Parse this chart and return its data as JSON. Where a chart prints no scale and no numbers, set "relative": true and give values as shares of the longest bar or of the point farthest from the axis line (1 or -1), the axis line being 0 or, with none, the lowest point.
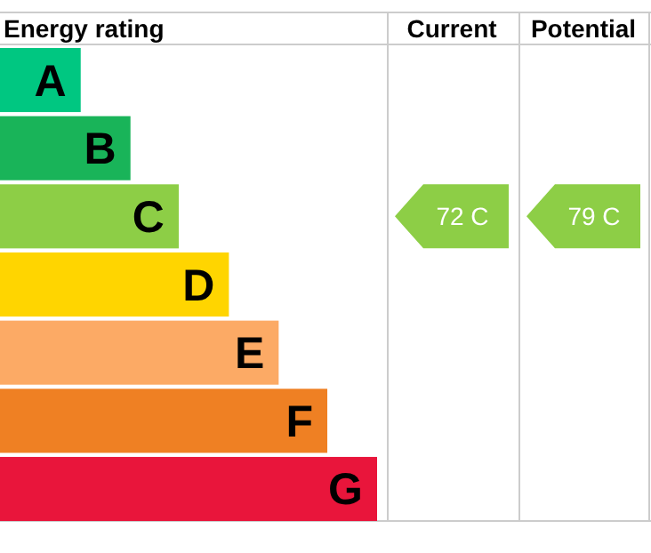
{
  "chart_data": {
    "type": "bar",
    "orientation": "horizontal",
    "relative": true,
    "title": "Energy rating",
    "categories": [
      "A",
      "B",
      "C",
      "D",
      "E",
      "F",
      "G"
    ],
    "values": [
      0.214,
      0.346,
      0.474,
      0.607,
      0.739,
      0.868,
      1
    ],
    "colors": [
      "#00c781",
      "#19b459",
      "#8dce46",
      "#ffd500",
      "#fcaa65",
      "#ef8023",
      "#e9153b"
    ],
    "annotations": [
      "Current",
      "Potential",
      "72 C",
      "79 C"
    ]
  }
}
